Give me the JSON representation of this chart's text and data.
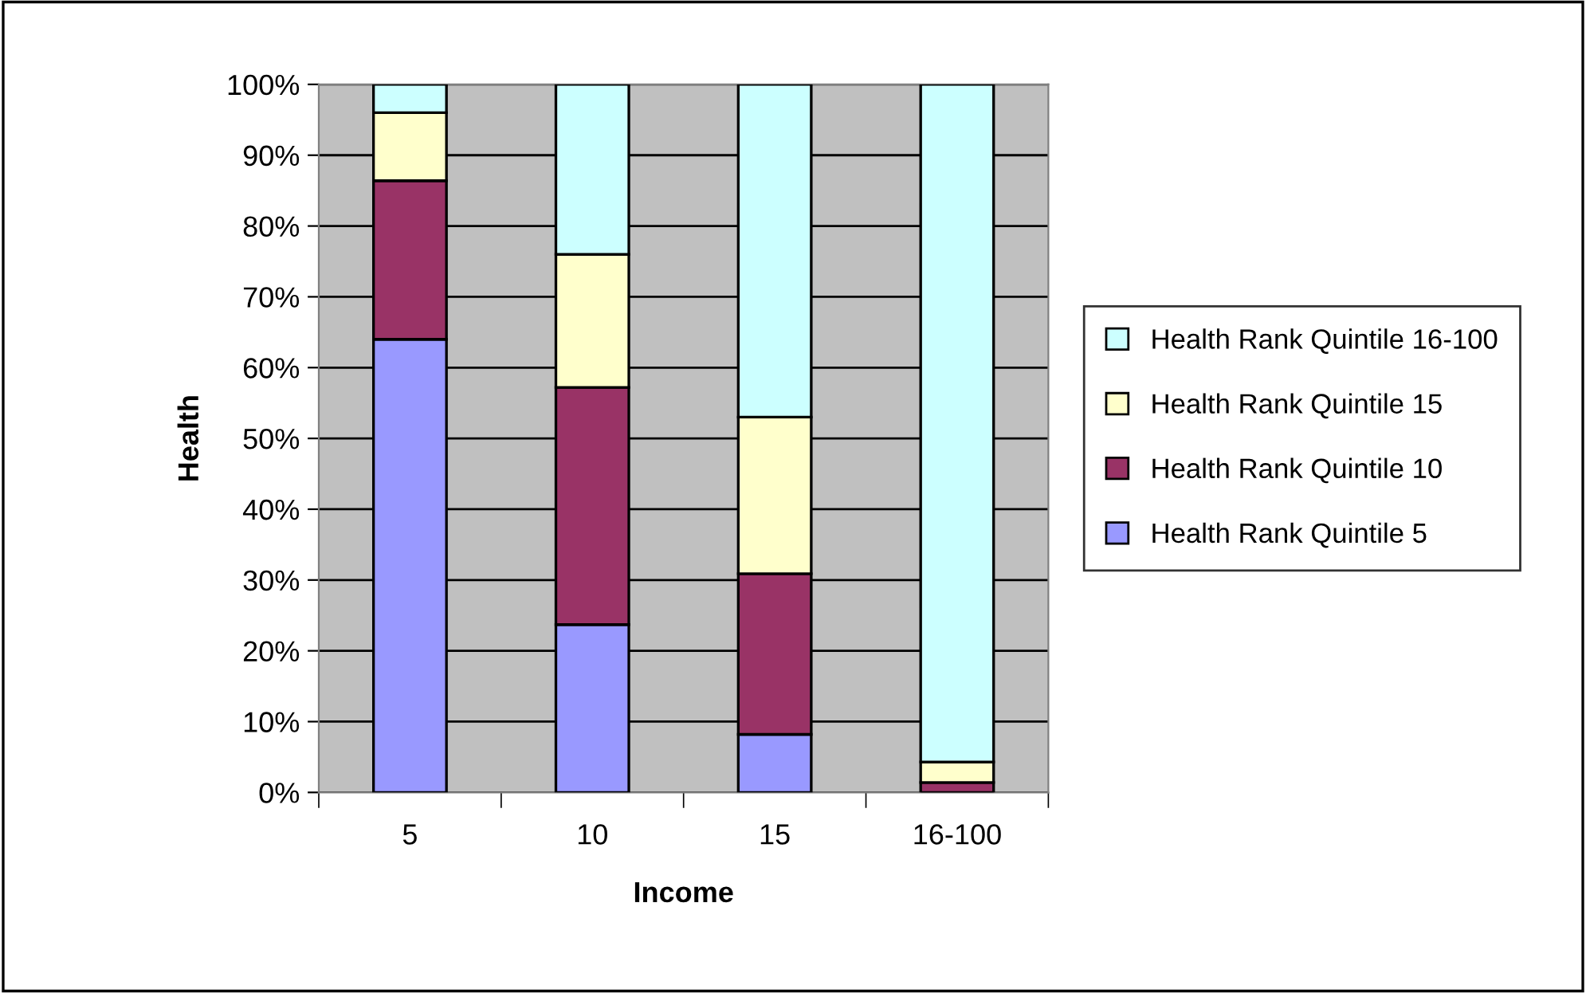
{
  "chart_data": {
    "type": "bar",
    "stacked": true,
    "xlabel": "Income",
    "ylabel": "Health",
    "categories": [
      "5",
      "10",
      "15",
      "16-100"
    ],
    "series": [
      {
        "name": "Health Rank Quintile 5",
        "color": "#9999ff",
        "values": [
          64.0,
          23.7,
          8.2,
          null
        ]
      },
      {
        "name": "Health Rank Quintile 10",
        "color": "#993366",
        "values": [
          22.4,
          33.5,
          22.7,
          1.4
        ]
      },
      {
        "name": "Health Rank Quintile 15",
        "color": "#ffffcc",
        "values": [
          9.6,
          18.8,
          22.1,
          2.9
        ]
      },
      {
        "name": "Health Rank Quintile 16-100",
        "color": "#ccffff",
        "values": [
          4.0,
          24.0,
          47.0,
          95.7
        ]
      }
    ],
    "ylim": [
      0,
      100
    ],
    "yticks": [
      {
        "value": 0,
        "label": "0%"
      },
      {
        "value": 10,
        "label": "10%"
      },
      {
        "value": 20,
        "label": "20%"
      },
      {
        "value": 30,
        "label": "30%"
      },
      {
        "value": 40,
        "label": "40%"
      },
      {
        "value": 50,
        "label": "50%"
      },
      {
        "value": 60,
        "label": "60%"
      },
      {
        "value": 70,
        "label": "70%"
      },
      {
        "value": 80,
        "label": "80%"
      },
      {
        "value": 90,
        "label": "90%"
      },
      {
        "value": 100,
        "label": "100%"
      }
    ],
    "grid": "y",
    "legend": "right"
  }
}
